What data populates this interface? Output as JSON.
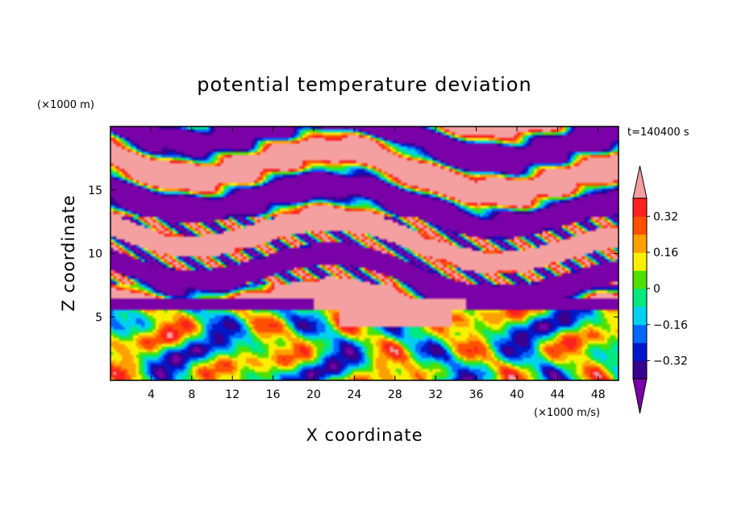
{
  "chart_data": {
    "type": "heatmap",
    "title": "potential temperature deviation",
    "xlabel": "X coordinate",
    "ylabel": "Z coordinate",
    "x_unit": "(×1000 m/s)",
    "y_unit": "(×1000 m)",
    "time_label": "t=140400 s",
    "xlim": [
      0,
      50
    ],
    "ylim": [
      0,
      20
    ],
    "x_ticks": [
      4,
      8,
      12,
      16,
      20,
      24,
      28,
      32,
      36,
      40,
      44,
      48
    ],
    "y_ticks": [
      5,
      10,
      15
    ],
    "colorbar": {
      "levels": [
        -0.4,
        -0.32,
        -0.24,
        -0.16,
        -0.08,
        0,
        0.08,
        0.16,
        0.24,
        0.32,
        0.4
      ],
      "tick_labels": [
        "0.32",
        "0.16",
        "0",
        "−0.16",
        "−0.32"
      ],
      "tick_values": [
        0.32,
        0.16,
        0,
        -0.16,
        -0.32
      ],
      "colors": [
        "#7a00a8",
        "#3a0090",
        "#0018c8",
        "#0068ff",
        "#00d0f0",
        "#00e880",
        "#50e000",
        "#f8f000",
        "#ffa000",
        "#ff5000",
        "#ff2020",
        "#f4a0a0"
      ],
      "extend": "both"
    }
  }
}
